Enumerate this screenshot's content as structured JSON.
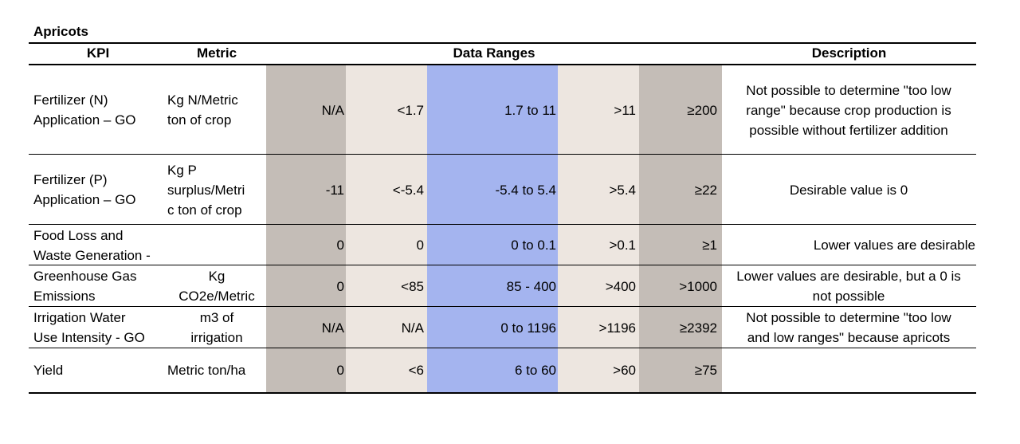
{
  "table": {
    "title": "Apricots",
    "headers": {
      "kpi": "KPI",
      "metric": "Metric",
      "ranges": "Data Ranges",
      "description": "Description"
    },
    "colors": {
      "outer_range": "#c4bdb7",
      "low_range": "#ede6e0",
      "desirable_range": "#a4b4ef"
    },
    "rows": [
      {
        "kpi": [
          "Fertilizer (N)",
          "Application – GO"
        ],
        "metric": [
          "Kg N/Metric",
          "ton of crop"
        ],
        "values": [
          "N/A",
          "<1.7",
          "1.7 to 11",
          ">11",
          "≥200"
        ],
        "description": [
          "Not possible to determine \"too low",
          "range\" because crop production is",
          "possible without fertilizer addition"
        ]
      },
      {
        "kpi": [
          "Fertilizer (P)",
          "Application – GO"
        ],
        "metric": [
          "Kg P",
          "surplus/Metri",
          "c ton of crop"
        ],
        "values": [
          "-11",
          "<-5.4",
          "-5.4 to 5.4",
          ">5.4",
          "≥22"
        ],
        "description": [
          "Desirable value is 0"
        ]
      },
      {
        "kpi": [
          "Food Loss and",
          "Waste Generation -"
        ],
        "metric": [],
        "values": [
          "0",
          "0",
          "0 to 0.1",
          ">0.1",
          "≥1"
        ],
        "description": [
          "Lower values are desirable"
        ]
      },
      {
        "kpi": [
          "Greenhouse Gas",
          "Emissions"
        ],
        "metric": [
          "Kg",
          "CO2e/Metric"
        ],
        "values": [
          "0",
          "<85",
          "85 - 400",
          ">400",
          ">1000"
        ],
        "description": [
          "Lower values are desirable, but a 0 is",
          "not possible"
        ]
      },
      {
        "kpi": [
          "Irrigation Water",
          "Use Intensity - GO"
        ],
        "metric": [
          "m3 of",
          "irrigation"
        ],
        "values": [
          "N/A",
          "N/A",
          "0 to 1196",
          ">1196",
          "≥2392"
        ],
        "description": [
          "Not possible to determine \"too low",
          "and low ranges\" because apricots"
        ]
      },
      {
        "kpi": [
          "Yield"
        ],
        "metric": [
          "Metric ton/ha"
        ],
        "values": [
          "0",
          "<6",
          "6  to 60",
          ">60",
          "≥75"
        ],
        "description": []
      }
    ]
  }
}
